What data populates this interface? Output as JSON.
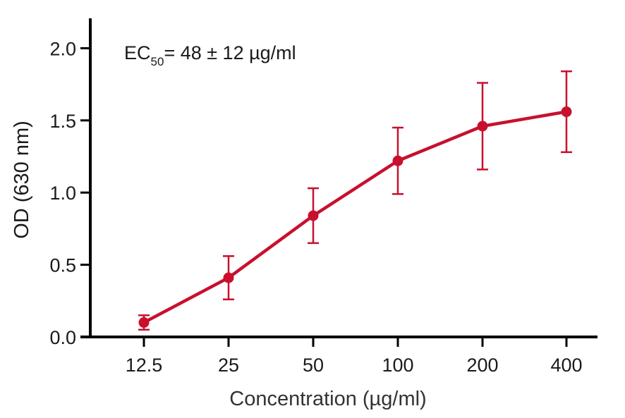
{
  "chart_data": {
    "type": "line",
    "title": "",
    "xlabel": "Concentration (µg/ml)",
    "ylabel": "OD (630 nm)",
    "x_scale": "categorical (log2-spaced)",
    "categories": [
      "12.5",
      "25",
      "50",
      "100",
      "200",
      "400"
    ],
    "series": [
      {
        "name": "OD (630 nm)",
        "color": "#c8102e",
        "values": [
          0.1,
          0.41,
          0.84,
          1.22,
          1.46,
          1.56
        ],
        "error": [
          0.05,
          0.15,
          0.19,
          0.23,
          0.3,
          0.28
        ]
      }
    ],
    "ylim": [
      0.0,
      2.2
    ],
    "yticks": [
      "0.0",
      "0.5",
      "1.0",
      "1.5",
      "2.0"
    ],
    "ytick_values": [
      0.0,
      0.5,
      1.0,
      1.5,
      2.0
    ],
    "grid": false,
    "legend": null,
    "annotations": [
      {
        "text": "EC",
        "subscript": "50",
        "rest": "= 48 ± 12 µg/ml",
        "position": "top-left"
      }
    ]
  },
  "annotation": {
    "main": "EC",
    "sub": "50",
    "rest": "= 48 ± 12 µg/ml"
  },
  "colors": {
    "series": "#c8102e",
    "axis": "#000000",
    "text": "#1a1a1a"
  }
}
